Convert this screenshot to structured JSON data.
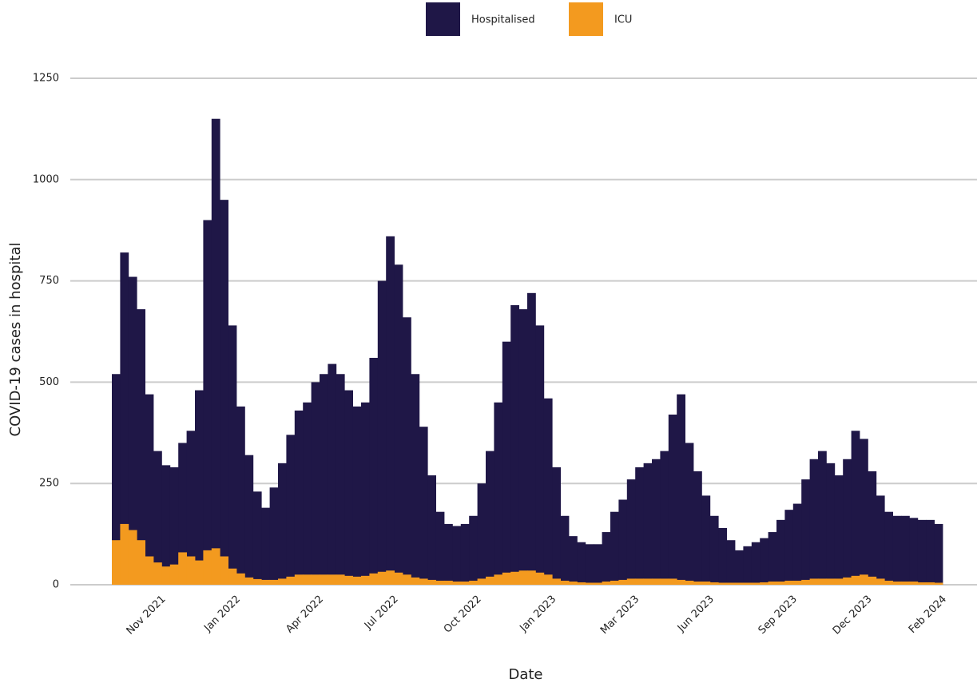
{
  "chart_data": {
    "type": "bar",
    "x_label": "Date",
    "y_label": "COVID-19 cases in hospital",
    "categories": [
      null,
      null,
      null,
      null,
      null,
      "Nov 2021",
      null,
      null,
      null,
      null,
      null,
      null,
      null,
      null,
      "Jan 2022",
      null,
      null,
      null,
      null,
      null,
      null,
      null,
      null,
      null,
      "Apr 2022",
      null,
      null,
      null,
      null,
      null,
      null,
      null,
      null,
      "Jul 2022",
      null,
      null,
      null,
      null,
      null,
      null,
      null,
      null,
      null,
      "Oct 2022",
      null,
      null,
      null,
      null,
      null,
      null,
      null,
      null,
      "Jan 2023",
      null,
      null,
      null,
      null,
      null,
      null,
      null,
      null,
      null,
      "Mar 2023",
      null,
      null,
      null,
      null,
      null,
      null,
      null,
      null,
      "Jun 2023",
      null,
      null,
      null,
      null,
      null,
      null,
      null,
      null,
      null,
      "Sep 2023",
      null,
      null,
      null,
      null,
      null,
      null,
      null,
      null,
      "Dec 2023",
      null,
      null,
      null,
      null,
      null,
      null,
      null,
      null,
      "Feb 2024"
    ],
    "series": [
      {
        "name": "Hospitalised",
        "color": "#1f1747",
        "values": [
          520,
          820,
          760,
          680,
          470,
          330,
          295,
          290,
          350,
          380,
          480,
          900,
          1150,
          950,
          640,
          440,
          320,
          230,
          190,
          240,
          300,
          370,
          430,
          450,
          500,
          520,
          545,
          520,
          480,
          440,
          450,
          560,
          750,
          860,
          790,
          660,
          520,
          390,
          270,
          180,
          150,
          145,
          150,
          170,
          250,
          330,
          450,
          600,
          690,
          680,
          720,
          640,
          460,
          290,
          170,
          120,
          105,
          100,
          100,
          130,
          180,
          210,
          260,
          290,
          300,
          310,
          330,
          420,
          470,
          350,
          280,
          220,
          170,
          140,
          110,
          85,
          95,
          105,
          115,
          130,
          160,
          185,
          200,
          260,
          310,
          330,
          300,
          270,
          310,
          380,
          360,
          280,
          220,
          180,
          170,
          170,
          165,
          160,
          160,
          150
        ]
      },
      {
        "name": "ICU",
        "color": "#f39a1f",
        "values": [
          110,
          150,
          135,
          110,
          70,
          55,
          45,
          50,
          80,
          70,
          60,
          85,
          90,
          70,
          40,
          28,
          18,
          14,
          12,
          12,
          15,
          20,
          25,
          25,
          25,
          25,
          25,
          25,
          22,
          20,
          22,
          28,
          32,
          35,
          30,
          25,
          18,
          15,
          12,
          10,
          10,
          8,
          8,
          10,
          15,
          20,
          25,
          30,
          32,
          35,
          35,
          30,
          25,
          15,
          10,
          8,
          6,
          5,
          5,
          8,
          10,
          12,
          15,
          15,
          15,
          15,
          15,
          15,
          12,
          10,
          8,
          8,
          6,
          5,
          5,
          5,
          5,
          5,
          6,
          8,
          8,
          10,
          10,
          12,
          15,
          15,
          15,
          15,
          18,
          22,
          25,
          20,
          15,
          10,
          8,
          8,
          8,
          6,
          6,
          5
        ]
      }
    ],
    "ylim": [
      0,
      1250
    ],
    "yticks": [
      0,
      250,
      500,
      750,
      1000,
      1250
    ],
    "grid": true
  }
}
